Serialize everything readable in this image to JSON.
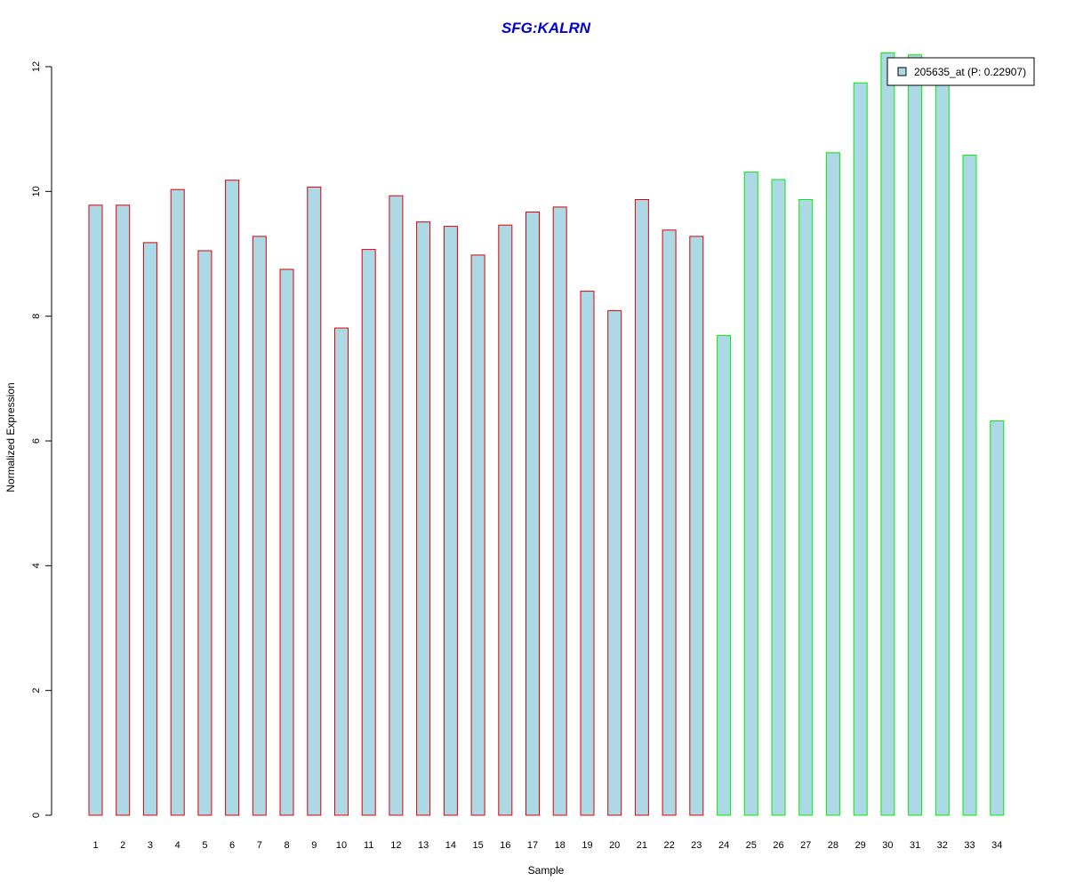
{
  "chart_data": {
    "type": "bar",
    "title": "SFG:KALRN",
    "xlabel": "Sample",
    "ylabel": "Normalized Expression",
    "ylim": [
      0,
      12
    ],
    "yticks": [
      "0",
      "2",
      "4",
      "6",
      "8",
      "10",
      "12"
    ],
    "categories": [
      "1",
      "2",
      "3",
      "4",
      "5",
      "6",
      "7",
      "8",
      "9",
      "10",
      "11",
      "12",
      "13",
      "14",
      "15",
      "16",
      "17",
      "18",
      "19",
      "20",
      "21",
      "22",
      "23",
      "24",
      "25",
      "26",
      "27",
      "28",
      "29",
      "30",
      "31",
      "32",
      "33",
      "34"
    ],
    "series": [
      {
        "name": "205635_at (P: 0.22907)",
        "values": [
          9.78,
          9.78,
          9.18,
          10.03,
          9.05,
          10.18,
          9.28,
          8.75,
          10.07,
          7.81,
          9.07,
          9.93,
          9.51,
          9.44,
          8.98,
          9.46,
          9.67,
          9.75,
          8.4,
          8.09,
          9.87,
          9.38,
          9.28,
          7.69,
          10.31,
          10.19,
          9.87,
          10.62,
          11.74,
          12.22,
          12.19,
          11.79,
          10.58,
          6.32
        ]
      }
    ],
    "groups": [
      {
        "samples": "1-23",
        "border_color": "#dd0000"
      },
      {
        "samples": "24-34",
        "border_color": "#00ee00"
      }
    ],
    "bar_fill": "#add8e6",
    "title_color": "#0000cc",
    "legend_position": "top-right",
    "grid": false
  }
}
